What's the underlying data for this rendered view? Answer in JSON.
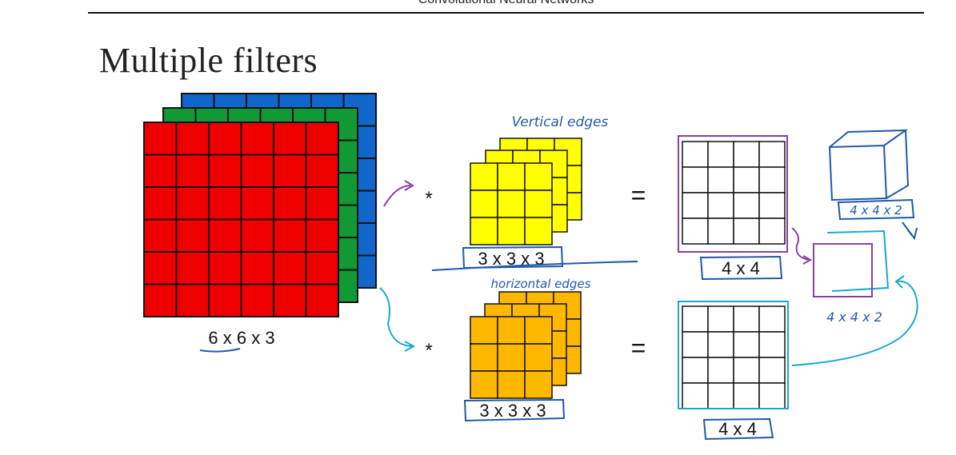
{
  "header": {
    "text": "Convolutional Neural Networks"
  },
  "slide": {
    "title": "Multiple filters"
  },
  "input": {
    "label": "6 x 6 x 3",
    "colors": [
      "#ee0000",
      "#119933",
      "#1166cc"
    ]
  },
  "filters": [
    {
      "label": "3 x 3 x 3",
      "color": "#ffff00",
      "annotation": "Vertical edges"
    },
    {
      "label": "3 x 3 x 3",
      "color": "#ffb800",
      "annotation": "horizontal edges"
    }
  ],
  "operators": {
    "convolve": "*",
    "equals": "="
  },
  "outputs": [
    {
      "label": "4 x 4"
    },
    {
      "label": "4 x 4"
    }
  ],
  "stacked": {
    "label": "4 x 4 x 2"
  },
  "cube": {
    "label": "4 x 4 x 2"
  },
  "ink": {
    "purple": "#8a3ea8",
    "blue": "#1f5aa8",
    "cyan": "#1aa8d0"
  }
}
